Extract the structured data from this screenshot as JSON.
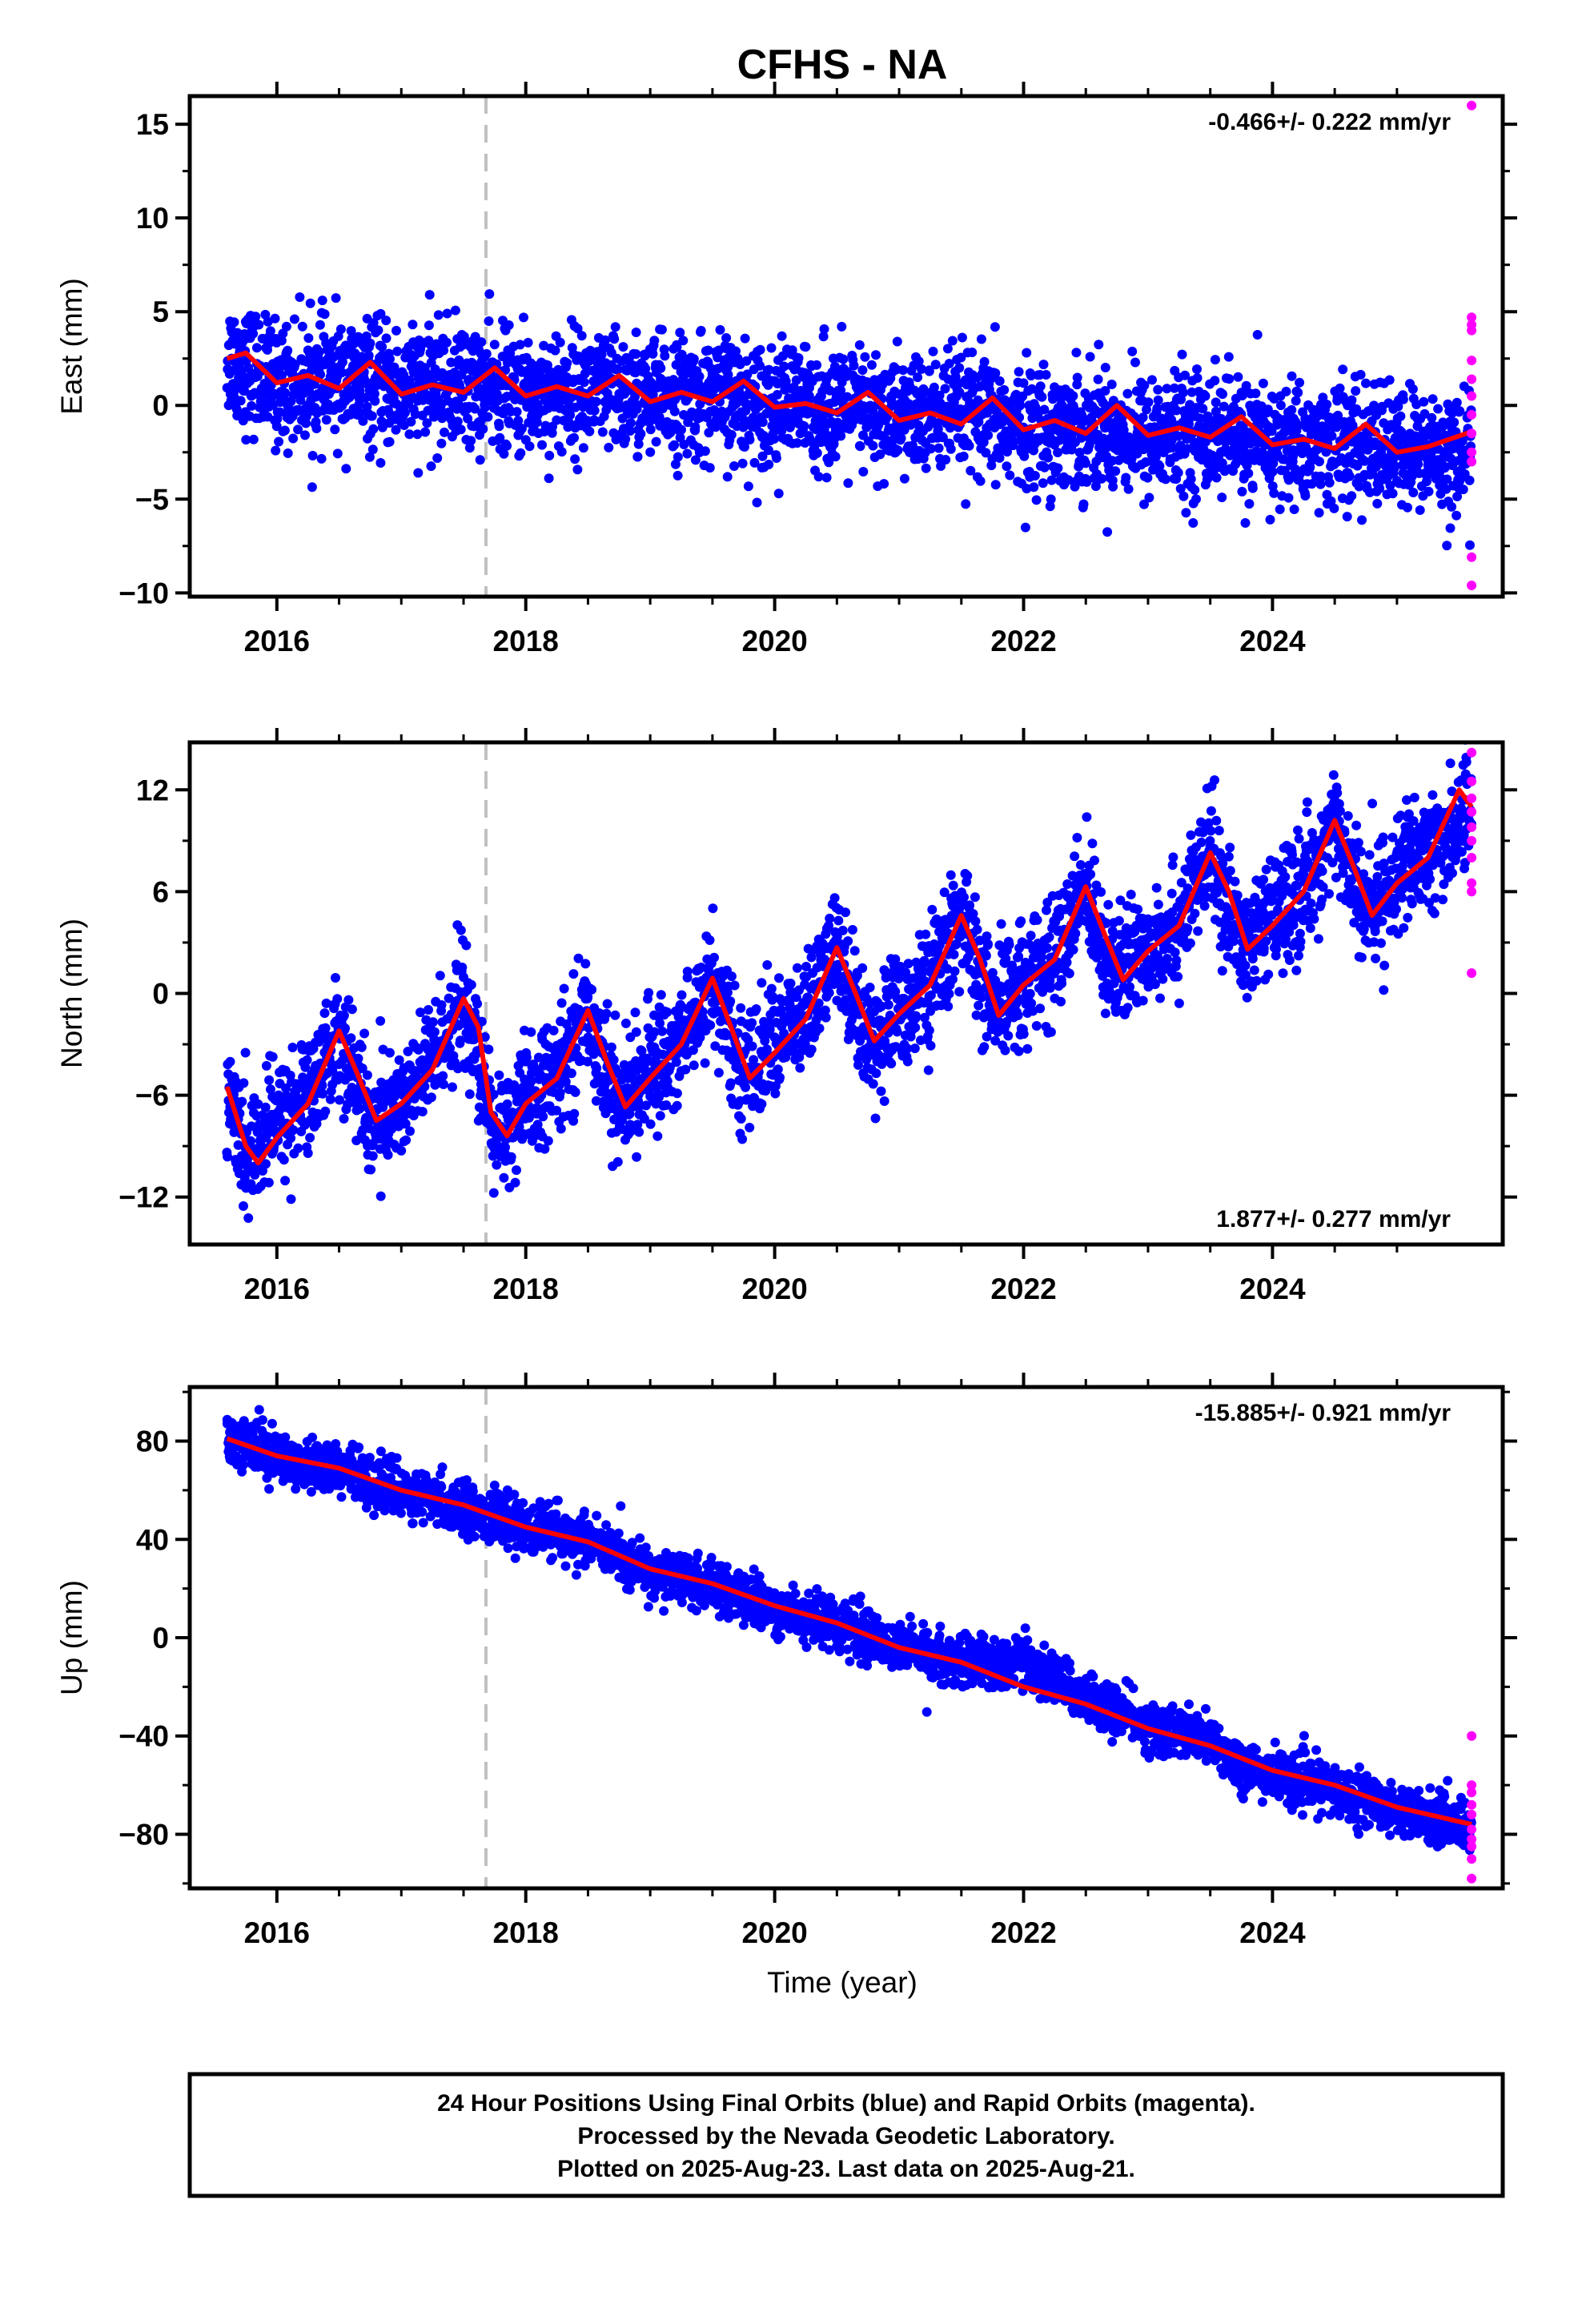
{
  "chart_data": [
    {
      "type": "scatter",
      "panel": "east",
      "title": "CFHS - NA",
      "ylabel": "East (mm)",
      "xlim": [
        2015.3,
        2025.85
      ],
      "ylim": [
        -10.2,
        16.5
      ],
      "yticks": [
        15,
        10,
        5,
        0,
        -5,
        -10
      ],
      "ytick_labels": [
        "15",
        "10",
        "5",
        "0",
        "−5",
        "−10"
      ],
      "xticks": [
        2016,
        2018,
        2020,
        2022,
        2024
      ],
      "xtick_labels": [
        "2016",
        "2018",
        "2020",
        "2022",
        "2024"
      ],
      "rate_label": "-0.466+/- 0.222 mm/yr",
      "rate_position": "top-right",
      "equipment_change_x": 2017.68,
      "series": [
        {
          "kind": "final_orbits_trend",
          "color": "#0000ff",
          "x": [
            2015.6,
            2016.0,
            2016.5,
            2017.0,
            2017.5,
            2018.0,
            2018.5,
            2019.0,
            2019.5,
            2020.0,
            2020.5,
            2021.0,
            2021.5,
            2022.0,
            2022.5,
            2023.0,
            2023.5,
            2024.0,
            2024.5,
            2025.0,
            2025.6
          ],
          "values": [
            2.6,
            1.1,
            1.3,
            0.9,
            1.1,
            0.6,
            0.8,
            0.4,
            0.5,
            0.0,
            -0.1,
            -0.6,
            -0.4,
            -1.2,
            -1.2,
            -1.6,
            -1.4,
            -2.1,
            -2.0,
            -2.4,
            -2.6
          ],
          "spread": 1.6
        },
        {
          "kind": "fit",
          "color": "#ff0000",
          "x": [
            2015.6,
            2015.75,
            2016.0,
            2016.25,
            2016.5,
            2016.75,
            2017.0,
            2017.25,
            2017.5,
            2017.75,
            2018.0,
            2018.25,
            2018.5,
            2018.75,
            2019.0,
            2019.25,
            2019.5,
            2019.75,
            2020.0,
            2020.25,
            2020.5,
            2020.75,
            2021.0,
            2021.25,
            2021.5,
            2021.75,
            2022.0,
            2022.25,
            2022.5,
            2022.75,
            2023.0,
            2023.25,
            2023.5,
            2023.75,
            2024.0,
            2024.25,
            2024.5,
            2024.75,
            2025.0,
            2025.25,
            2025.6
          ],
          "values": [
            2.5,
            2.8,
            1.2,
            1.6,
            0.9,
            2.3,
            0.6,
            1.1,
            0.7,
            2.0,
            0.5,
            1.0,
            0.5,
            1.6,
            0.2,
            0.7,
            0.2,
            1.3,
            -0.1,
            0.1,
            -0.4,
            0.7,
            -0.8,
            -0.4,
            -1.0,
            0.4,
            -1.3,
            -0.8,
            -1.5,
            0.0,
            -1.6,
            -1.2,
            -1.7,
            -0.6,
            -2.1,
            -1.8,
            -2.3,
            -1.0,
            -2.5,
            -2.2,
            -1.4
          ]
        },
        {
          "kind": "rapid_orbits",
          "color": "#ff00ff",
          "x": [
            2025.6,
            2025.6,
            2025.6,
            2025.6,
            2025.6,
            2025.6,
            2025.6,
            2025.6,
            2025.6,
            2025.6,
            2025.6,
            2025.6,
            2025.6
          ],
          "values": [
            16.0,
            4.7,
            4.3,
            4.0,
            2.4,
            1.4,
            0.5,
            -0.5,
            -1.5,
            -2.5,
            -3.0,
            -8.1,
            -9.6
          ]
        }
      ]
    },
    {
      "type": "scatter",
      "panel": "north",
      "ylabel": "North (mm)",
      "xlim": [
        2015.3,
        2025.85
      ],
      "ylim": [
        -14.8,
        14.8
      ],
      "yticks": [
        12,
        6,
        0,
        -6,
        -12
      ],
      "ytick_labels": [
        "12",
        "6",
        "0",
        "−6",
        "−12"
      ],
      "xticks": [
        2016,
        2018,
        2020,
        2022,
        2024
      ],
      "xtick_labels": [
        "2016",
        "2018",
        "2020",
        "2022",
        "2024"
      ],
      "rate_label": "1.877+/- 0.277 mm/yr",
      "rate_position": "bottom-right",
      "equipment_change_x": 2017.68,
      "series": [
        {
          "kind": "final_orbits_trend",
          "color": "#0000ff",
          "x": [
            2015.6,
            2015.75,
            2016.0,
            2016.25,
            2016.5,
            2016.75,
            2017.0,
            2017.25,
            2017.5,
            2017.75,
            2018.0,
            2018.25,
            2018.5,
            2018.75,
            2019.0,
            2019.25,
            2019.5,
            2019.75,
            2020.0,
            2020.25,
            2020.5,
            2020.75,
            2021.0,
            2021.25,
            2021.5,
            2021.75,
            2022.0,
            2022.25,
            2022.5,
            2022.75,
            2023.0,
            2023.25,
            2023.5,
            2023.75,
            2024.0,
            2024.25,
            2024.5,
            2024.75,
            2025.0,
            2025.25,
            2025.6
          ],
          "values": [
            -5.5,
            -10.0,
            -7.5,
            -6.0,
            -2.2,
            -7.6,
            -6.5,
            -4.0,
            -0.3,
            -8.4,
            -6.5,
            -5.0,
            -1.0,
            -6.7,
            -4.5,
            -2.8,
            0.9,
            -5.0,
            -2.5,
            -1.5,
            2.7,
            -2.8,
            -1.0,
            0.5,
            4.6,
            -1.3,
            1.0,
            2.0,
            6.3,
            0.8,
            3.0,
            4.0,
            8.3,
            2.6,
            4.5,
            6.0,
            10.2,
            4.6,
            7.0,
            8.0,
            11.0
          ],
          "spread": 1.7
        },
        {
          "kind": "fit",
          "color": "#ff0000",
          "x": [
            2015.6,
            2015.75,
            2015.85,
            2016.0,
            2016.25,
            2016.5,
            2016.65,
            2016.8,
            2017.0,
            2017.25,
            2017.5,
            2017.62,
            2017.72,
            2017.85,
            2018.0,
            2018.25,
            2018.5,
            2018.65,
            2018.8,
            2019.0,
            2019.25,
            2019.5,
            2019.65,
            2019.8,
            2020.0,
            2020.25,
            2020.5,
            2020.65,
            2020.8,
            2021.0,
            2021.25,
            2021.5,
            2021.65,
            2021.8,
            2022.0,
            2022.25,
            2022.5,
            2022.65,
            2022.8,
            2023.0,
            2023.25,
            2023.5,
            2023.65,
            2023.8,
            2024.0,
            2024.25,
            2024.5,
            2024.65,
            2024.8,
            2025.0,
            2025.25,
            2025.5,
            2025.6
          ],
          "values": [
            -5.5,
            -9.0,
            -10.0,
            -8.5,
            -6.5,
            -2.2,
            -4.8,
            -7.5,
            -6.5,
            -4.5,
            -0.3,
            -2.0,
            -7.0,
            -8.4,
            -6.5,
            -5.0,
            -1.0,
            -4.0,
            -6.7,
            -5.0,
            -3.0,
            0.9,
            -2.0,
            -5.0,
            -3.5,
            -1.5,
            2.7,
            0.0,
            -2.8,
            -1.2,
            0.5,
            4.6,
            2.0,
            -1.3,
            0.5,
            2.0,
            6.3,
            3.5,
            0.8,
            2.5,
            4.0,
            8.3,
            6.0,
            2.6,
            4.0,
            6.0,
            10.2,
            7.5,
            4.6,
            6.5,
            8.0,
            12.0,
            11.0
          ]
        },
        {
          "kind": "rapid_orbits",
          "color": "#ff00ff",
          "x": [
            2025.6,
            2025.6,
            2025.6,
            2025.6,
            2025.6,
            2025.6,
            2025.6,
            2025.6,
            2025.6,
            2025.6
          ],
          "values": [
            14.2,
            12.5,
            11.5,
            10.7,
            9.8,
            9.0,
            8.0,
            6.5,
            6.0,
            1.2
          ]
        }
      ]
    },
    {
      "type": "scatter",
      "panel": "up",
      "ylabel": "Up (mm)",
      "xlabel": "Time (year)",
      "xlim": [
        2015.3,
        2025.85
      ],
      "ylim": [
        -102,
        102
      ],
      "yticks": [
        80,
        40,
        0,
        -40,
        -80
      ],
      "ytick_labels": [
        "80",
        "40",
        "0",
        "−40",
        "−80"
      ],
      "xticks": [
        2016,
        2018,
        2020,
        2022,
        2024
      ],
      "xtick_labels": [
        "2016",
        "2018",
        "2020",
        "2022",
        "2024"
      ],
      "rate_label": "-15.885+/- 0.921 mm/yr",
      "rate_position": "top-right",
      "equipment_change_x": 2017.68,
      "series": [
        {
          "kind": "final_orbits_trend",
          "color": "#0000ff",
          "x": [
            2015.6,
            2016.0,
            2016.5,
            2017.0,
            2017.5,
            2018.0,
            2018.5,
            2019.0,
            2019.5,
            2020.0,
            2020.5,
            2021.0,
            2021.5,
            2021.75,
            2022.0,
            2022.5,
            2023.0,
            2023.5,
            2023.75,
            2024.0,
            2024.5,
            2025.0,
            2025.6
          ],
          "values": [
            82,
            74,
            69,
            59,
            53,
            45,
            39,
            26,
            21,
            12,
            6,
            -4,
            -9,
            -10,
            -10,
            -24,
            -36,
            -42,
            -52,
            -56,
            -62,
            -70,
            -77
          ],
          "spread": 5
        },
        {
          "kind": "fit",
          "color": "#ff0000",
          "x": [
            2015.6,
            2016.0,
            2016.5,
            2017.0,
            2017.5,
            2018.0,
            2018.5,
            2019.0,
            2019.5,
            2020.0,
            2020.5,
            2021.0,
            2021.5,
            2022.0,
            2022.5,
            2023.0,
            2023.5,
            2024.0,
            2024.5,
            2025.0,
            2025.6
          ],
          "values": [
            81,
            74,
            69,
            60,
            54,
            45,
            39,
            28,
            22,
            13,
            6,
            -4,
            -10,
            -20,
            -27,
            -37,
            -44,
            -54,
            -60,
            -69,
            -76
          ]
        },
        {
          "kind": "rapid_orbits",
          "color": "#ff00ff",
          "x": [
            2025.6,
            2025.6,
            2025.6,
            2025.6,
            2025.6,
            2025.6,
            2025.6,
            2025.6,
            2025.6,
            2025.6
          ],
          "values": [
            -40,
            -60,
            -63,
            -68,
            -72,
            -78,
            -82,
            -85,
            -90,
            -98
          ]
        }
      ]
    }
  ],
  "footer": {
    "line1": "24 Hour Positions Using Final Orbits (blue) and Rapid Orbits (magenta).",
    "line2": "Processed by the Nevada Geodetic Laboratory.",
    "line3": "Plotted on 2025-Aug-23. Last data on 2025-Aug-21."
  }
}
